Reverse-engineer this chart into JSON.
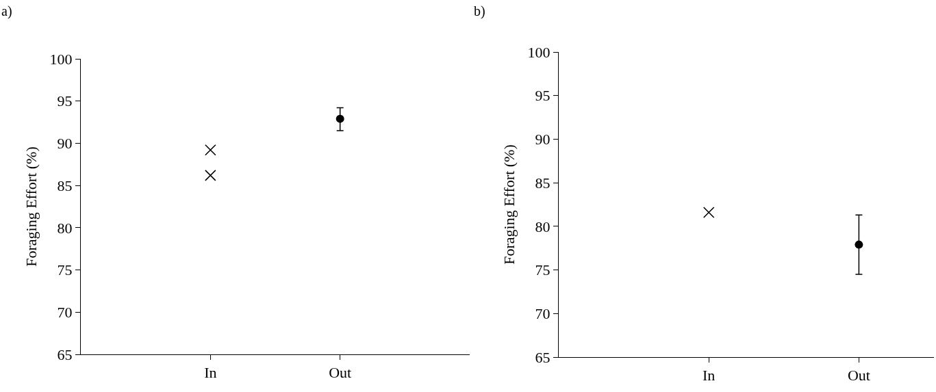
{
  "chart_data": [
    {
      "type": "scatter",
      "title": "a)",
      "ylabel": "Foraging Effort (%)",
      "categories": [
        "In",
        "Out"
      ],
      "ylim": [
        65,
        100
      ],
      "yticks": [
        65,
        70,
        75,
        80,
        85,
        90,
        95,
        100
      ],
      "series": [
        {
          "x": [
            "In",
            "In"
          ],
          "values": [
            89.2,
            86.2
          ],
          "marker": "cross",
          "color": "#000000"
        },
        {
          "x": [
            "Out"
          ],
          "values": [
            92.9
          ],
          "errors": [
            [
              91.5,
              94.2
            ]
          ],
          "marker": "circle",
          "color": "#000000"
        }
      ]
    },
    {
      "type": "scatter",
      "title": "b)",
      "ylabel": "Foraging Effort (%)",
      "categories": [
        "In",
        "Out"
      ],
      "ylim": [
        65,
        100
      ],
      "yticks": [
        65,
        70,
        75,
        80,
        85,
        90,
        95,
        100
      ],
      "series": [
        {
          "x": [
            "In"
          ],
          "values": [
            81.6
          ],
          "marker": "cross",
          "color": "#000000"
        },
        {
          "x": [
            "Out"
          ],
          "values": [
            77.9
          ],
          "errors": [
            [
              74.5,
              81.3
            ]
          ],
          "marker": "circle",
          "color": "#000000"
        }
      ]
    }
  ]
}
